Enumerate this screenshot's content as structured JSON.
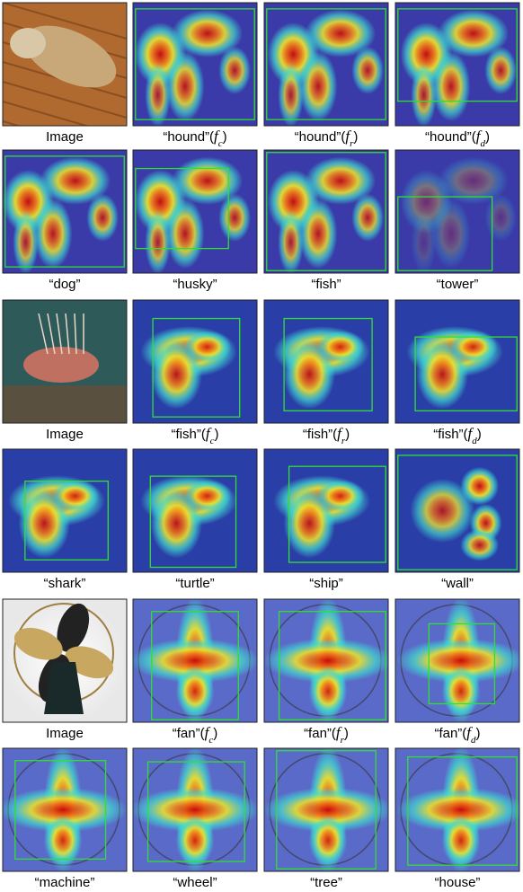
{
  "figure": {
    "rows": [
      {
        "panels": [
          {
            "caption": [
              {
                "text": "Image"
              }
            ]
          },
          {
            "caption": [
              {
                "text": "“hound”("
              },
              {
                "text": "f",
                "style": "italic"
              },
              {
                "text": "c",
                "style": "sub"
              },
              {
                "text": ")"
              }
            ]
          },
          {
            "caption": [
              {
                "text": "“hound”("
              },
              {
                "text": "f",
                "style": "italic"
              },
              {
                "text": "r",
                "style": "sub"
              },
              {
                "text": ")"
              }
            ]
          },
          {
            "caption": [
              {
                "text": "“hound”("
              },
              {
                "text": "f",
                "style": "italic"
              },
              {
                "text": "d",
                "style": "sub"
              },
              {
                "text": ")"
              }
            ]
          }
        ]
      },
      {
        "panels": [
          {
            "caption": [
              {
                "text": "“dog”"
              }
            ]
          },
          {
            "caption": [
              {
                "text": "“husky”"
              }
            ]
          },
          {
            "caption": [
              {
                "text": "“fish”"
              }
            ]
          },
          {
            "caption": [
              {
                "text": "“tower”"
              }
            ]
          }
        ]
      },
      {
        "panels": [
          {
            "caption": [
              {
                "text": "Image"
              }
            ]
          },
          {
            "caption": [
              {
                "text": "“fish”("
              },
              {
                "text": "f",
                "style": "italic"
              },
              {
                "text": "c",
                "style": "sub"
              },
              {
                "text": ")"
              }
            ]
          },
          {
            "caption": [
              {
                "text": "“fish”("
              },
              {
                "text": "f",
                "style": "italic"
              },
              {
                "text": "r",
                "style": "sub"
              },
              {
                "text": ")"
              }
            ]
          },
          {
            "caption": [
              {
                "text": "“fish”("
              },
              {
                "text": "f",
                "style": "italic"
              },
              {
                "text": "d",
                "style": "sub"
              },
              {
                "text": ")"
              }
            ]
          }
        ]
      },
      {
        "panels": [
          {
            "caption": [
              {
                "text": "“shark”"
              }
            ]
          },
          {
            "caption": [
              {
                "text": "“turtle”"
              }
            ]
          },
          {
            "caption": [
              {
                "text": "“ship”"
              }
            ]
          },
          {
            "caption": [
              {
                "text": "“wall”"
              }
            ]
          }
        ]
      },
      {
        "panels": [
          {
            "caption": [
              {
                "text": "Image"
              }
            ]
          },
          {
            "caption": [
              {
                "text": "“fan”("
              },
              {
                "text": "f",
                "style": "italic"
              },
              {
                "text": "c",
                "style": "sub"
              },
              {
                "text": ")"
              }
            ]
          },
          {
            "caption": [
              {
                "text": "“fan”("
              },
              {
                "text": "f",
                "style": "italic"
              },
              {
                "text": "r",
                "style": "sub"
              },
              {
                "text": ")"
              }
            ]
          },
          {
            "caption": [
              {
                "text": "“fan”("
              },
              {
                "text": "f",
                "style": "italic"
              },
              {
                "text": "d",
                "style": "sub"
              },
              {
                "text": ")"
              }
            ]
          }
        ]
      },
      {
        "panels": [
          {
            "caption": [
              {
                "text": "“machine”"
              }
            ]
          },
          {
            "caption": [
              {
                "text": "“wheel”"
              }
            ]
          },
          {
            "caption": [
              {
                "text": "“tree”"
              }
            ]
          },
          {
            "caption": [
              {
                "text": "“house”"
              }
            ]
          }
        ]
      }
    ]
  }
}
